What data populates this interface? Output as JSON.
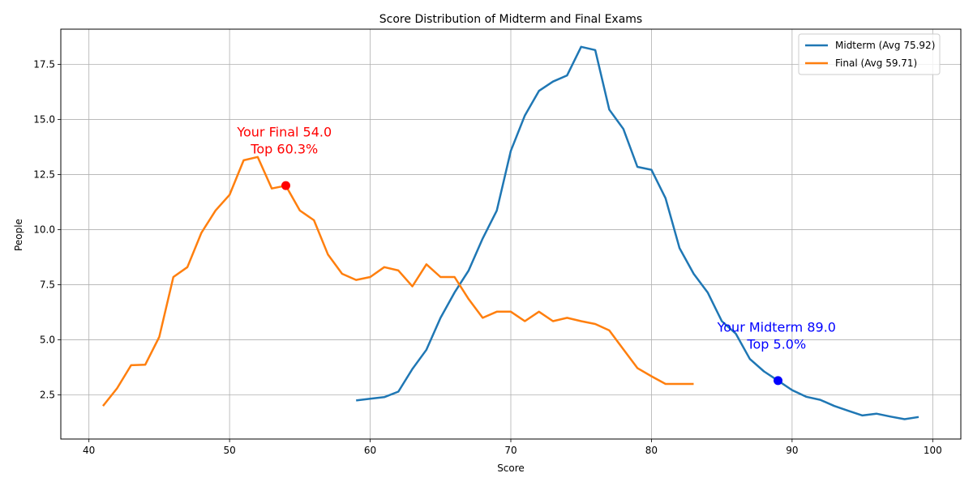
{
  "chart_data": {
    "type": "line",
    "title": "Score Distribution of Midterm and Final Exams",
    "xlabel": "Score",
    "ylabel": "People",
    "xlim": [
      38,
      102
    ],
    "ylim": [
      0.5,
      19.1
    ],
    "xticks": [
      40,
      50,
      60,
      70,
      80,
      90,
      100
    ],
    "yticks": [
      2.5,
      5.0,
      7.5,
      10.0,
      12.5,
      15.0,
      17.5
    ],
    "xtick_labels": [
      "40",
      "50",
      "60",
      "70",
      "80",
      "90",
      "100"
    ],
    "ytick_labels": [
      "2.5",
      "5.0",
      "7.5",
      "10.0",
      "12.5",
      "15.0",
      "17.5"
    ],
    "grid": true,
    "legend_position": "top-right",
    "series": [
      {
        "name": "Midterm (Avg 75.92)",
        "color": "#1f77b4",
        "x": [
          59,
          60,
          61,
          62,
          63,
          64,
          65,
          66,
          67,
          68,
          69,
          70,
          71,
          72,
          73,
          74,
          75,
          76,
          77,
          78,
          79,
          80,
          81,
          82,
          83,
          84,
          85,
          86,
          87,
          88,
          89,
          90,
          91,
          92,
          93,
          94,
          95,
          96,
          97,
          98,
          99
        ],
        "y": [
          2.25,
          2.33,
          2.4,
          2.65,
          3.68,
          4.55,
          6.0,
          7.15,
          8.15,
          9.6,
          10.87,
          13.58,
          15.18,
          16.3,
          16.72,
          17.0,
          18.3,
          18.15,
          15.45,
          14.57,
          12.85,
          12.72,
          11.43,
          9.16,
          8.0,
          7.15,
          5.85,
          5.28,
          4.13,
          3.57,
          3.15,
          2.72,
          2.42,
          2.28,
          2.0,
          1.78,
          1.57,
          1.65,
          1.52,
          1.4,
          1.5
        ]
      },
      {
        "name": "Final (Avg 59.71)",
        "color": "#ff7f0e",
        "x": [
          41,
          42,
          43,
          44,
          45,
          46,
          47,
          48,
          49,
          50,
          51,
          52,
          53,
          54,
          55,
          56,
          57,
          58,
          59,
          60,
          61,
          62,
          63,
          64,
          65,
          66,
          67,
          68,
          69,
          70,
          71,
          72,
          73,
          74,
          75,
          76,
          77,
          78,
          79,
          80,
          81,
          82,
          83
        ],
        "y": [
          2.0,
          2.8,
          3.85,
          3.87,
          5.13,
          7.85,
          8.3,
          9.86,
          10.87,
          11.58,
          13.15,
          13.3,
          11.87,
          12.0,
          10.87,
          10.43,
          8.87,
          8.0,
          7.72,
          7.85,
          8.3,
          8.15,
          7.43,
          8.43,
          7.85,
          7.85,
          6.85,
          6.0,
          6.28,
          6.28,
          5.85,
          6.28,
          5.85,
          6.0,
          5.85,
          5.72,
          5.43,
          4.57,
          3.72,
          3.35,
          3.0,
          3.0,
          3.0
        ]
      }
    ],
    "annotations": [
      {
        "series": "Final (Avg 59.71)",
        "point": [
          54,
          12.0
        ],
        "color": "#ff0000",
        "line1": "Your Final 54.0",
        "line2": "Top 60.3%"
      },
      {
        "series": "Midterm (Avg 75.92)",
        "point": [
          89,
          3.15
        ],
        "color": "#0000ff",
        "line1": "Your Midterm 89.0",
        "line2": "Top 5.0%"
      }
    ]
  }
}
